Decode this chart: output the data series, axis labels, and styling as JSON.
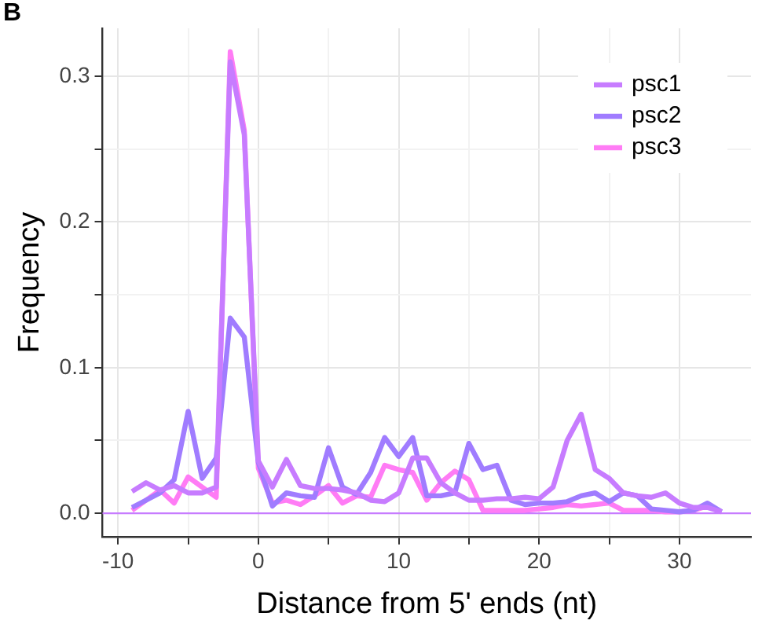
{
  "chart_data": {
    "type": "line",
    "xlabel": "Distance from 5' ends (nt)",
    "ylabel": "Frequency",
    "x": [
      -9,
      -8,
      -7,
      -6,
      -5,
      -4,
      -3,
      -2,
      -1,
      0,
      1,
      2,
      3,
      4,
      5,
      6,
      7,
      8,
      9,
      10,
      11,
      12,
      13,
      14,
      15,
      16,
      17,
      18,
      19,
      20,
      21,
      22,
      23,
      24,
      25,
      26,
      27,
      28,
      29,
      30,
      31,
      32,
      33
    ],
    "series": [
      {
        "name": "psc1",
        "color": "#c77cff",
        "values": [
          0.015,
          0.021,
          0.016,
          0.019,
          0.014,
          0.014,
          0.018,
          0.31,
          0.26,
          0.036,
          0.018,
          0.037,
          0.019,
          0.017,
          0.017,
          0.016,
          0.014,
          0.009,
          0.008,
          0.014,
          0.038,
          0.038,
          0.021,
          0.014,
          0.009,
          0.009,
          0.01,
          0.01,
          0.011,
          0.01,
          0.018,
          0.05,
          0.068,
          0.03,
          0.024,
          0.014,
          0.012,
          0.011,
          0.014,
          0.007,
          0.004,
          0.004,
          0.001
        ]
      },
      {
        "name": "psc2",
        "color": "#a07cff",
        "values": [
          0.004,
          0.009,
          0.014,
          0.023,
          0.07,
          0.024,
          0.038,
          0.134,
          0.121,
          0.035,
          0.005,
          0.014,
          0.012,
          0.011,
          0.045,
          0.018,
          0.013,
          0.028,
          0.052,
          0.039,
          0.052,
          0.012,
          0.012,
          0.014,
          0.048,
          0.03,
          0.033,
          0.009,
          0.006,
          0.007,
          0.007,
          0.008,
          0.012,
          0.014,
          0.008,
          0.014,
          0.012,
          0.003,
          0.002,
          0.001,
          0.002,
          0.007,
          0.001
        ]
      },
      {
        "name": "psc3",
        "color": "#ff7cf5",
        "values": [
          0.002,
          0.009,
          0.016,
          0.007,
          0.025,
          0.018,
          0.011,
          0.317,
          0.263,
          0.031,
          0.007,
          0.009,
          0.006,
          0.012,
          0.019,
          0.007,
          0.012,
          0.011,
          0.033,
          0.03,
          0.028,
          0.009,
          0.021,
          0.029,
          0.023,
          0.002,
          0.002,
          0.002,
          0.002,
          0.003,
          0.004,
          0.006,
          0.005,
          0.006,
          0.007,
          0.002,
          0.002,
          0.002,
          0.001,
          0.001,
          0.002,
          0.005,
          0.001
        ]
      }
    ],
    "xlim": [
      -11.1,
      35.1
    ],
    "xticks": [
      -10,
      {
        "value": -5,
        "label": null
      },
      0,
      {
        "value": 5,
        "label": null
      },
      10,
      {
        "value": 15,
        "label": null
      },
      20,
      {
        "value": 25,
        "label": null
      },
      30
    ],
    "ylim": [
      -0.016,
      0.333
    ],
    "yticks": [
      {
        "value": 0,
        "label": "0.0"
      },
      {
        "value": 0.05,
        "label": null
      },
      0.1,
      {
        "value": 0.15,
        "label": null
      },
      0.2,
      {
        "value": 0.25,
        "label": null
      },
      0.3
    ],
    "ref_lines": [
      {
        "axis": "y",
        "value": 0,
        "color": "#c77cff"
      }
    ],
    "grid": true,
    "legend": "top right",
    "marker": "none",
    "line_style": "solid",
    "annotations": [
      "B"
    ]
  }
}
